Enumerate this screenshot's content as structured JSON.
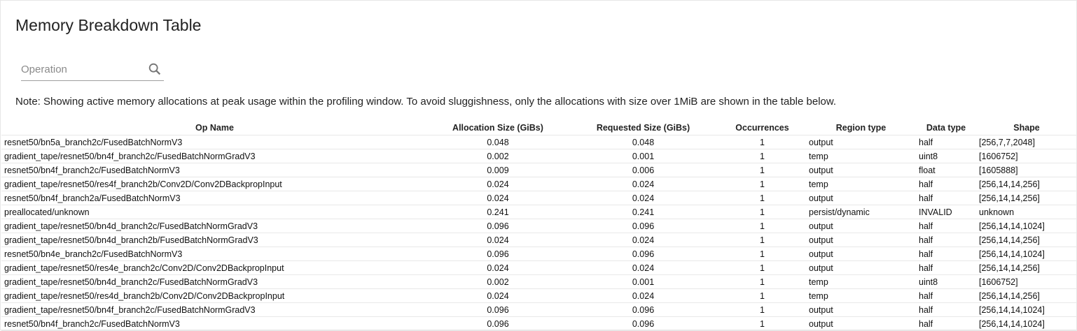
{
  "title": "Memory Breakdown Table",
  "search": {
    "placeholder": "Operation",
    "value": "",
    "icon": "search-icon"
  },
  "note": "Note: Showing active memory allocations at peak usage within the profiling window. To avoid sluggishness, only the allocations with size over 1MiB are shown in the table below.",
  "table": {
    "columns": [
      "Op Name",
      "Allocation Size (GiBs)",
      "Requested Size (GiBs)",
      "Occurrences",
      "Region type",
      "Data type",
      "Shape"
    ],
    "rows": [
      [
        "resnet50/bn5a_branch2c/FusedBatchNormV3",
        "0.048",
        "0.048",
        "1",
        "output",
        "half",
        "[256,7,7,2048]"
      ],
      [
        "gradient_tape/resnet50/bn4f_branch2c/FusedBatchNormGradV3",
        "0.002",
        "0.001",
        "1",
        "temp",
        "uint8",
        "[1606752]"
      ],
      [
        "resnet50/bn4f_branch2c/FusedBatchNormV3",
        "0.009",
        "0.006",
        "1",
        "output",
        "float",
        "[1605888]"
      ],
      [
        "gradient_tape/resnet50/res4f_branch2b/Conv2D/Conv2DBackpropInput",
        "0.024",
        "0.024",
        "1",
        "temp",
        "half",
        "[256,14,14,256]"
      ],
      [
        "resnet50/bn4f_branch2a/FusedBatchNormV3",
        "0.024",
        "0.024",
        "1",
        "output",
        "half",
        "[256,14,14,256]"
      ],
      [
        "preallocated/unknown",
        "0.241",
        "0.241",
        "1",
        "persist/dynamic",
        "INVALID",
        "unknown"
      ],
      [
        "gradient_tape/resnet50/bn4d_branch2c/FusedBatchNormGradV3",
        "0.096",
        "0.096",
        "1",
        "output",
        "half",
        "[256,14,14,1024]"
      ],
      [
        "gradient_tape/resnet50/bn4d_branch2b/FusedBatchNormGradV3",
        "0.024",
        "0.024",
        "1",
        "output",
        "half",
        "[256,14,14,256]"
      ],
      [
        "resnet50/bn4e_branch2c/FusedBatchNormV3",
        "0.096",
        "0.096",
        "1",
        "output",
        "half",
        "[256,14,14,1024]"
      ],
      [
        "gradient_tape/resnet50/res4e_branch2c/Conv2D/Conv2DBackpropInput",
        "0.024",
        "0.024",
        "1",
        "output",
        "half",
        "[256,14,14,256]"
      ],
      [
        "gradient_tape/resnet50/bn4d_branch2c/FusedBatchNormGradV3",
        "0.002",
        "0.001",
        "1",
        "temp",
        "uint8",
        "[1606752]"
      ],
      [
        "gradient_tape/resnet50/res4d_branch2b/Conv2D/Conv2DBackpropInput",
        "0.024",
        "0.024",
        "1",
        "temp",
        "half",
        "[256,14,14,256]"
      ],
      [
        "gradient_tape/resnet50/bn4f_branch2c/FusedBatchNormGradV3",
        "0.096",
        "0.096",
        "1",
        "output",
        "half",
        "[256,14,14,1024]"
      ],
      [
        "resnet50/bn4f_branch2c/FusedBatchNormV3",
        "0.096",
        "0.096",
        "1",
        "output",
        "half",
        "[256,14,14,1024]"
      ]
    ]
  }
}
